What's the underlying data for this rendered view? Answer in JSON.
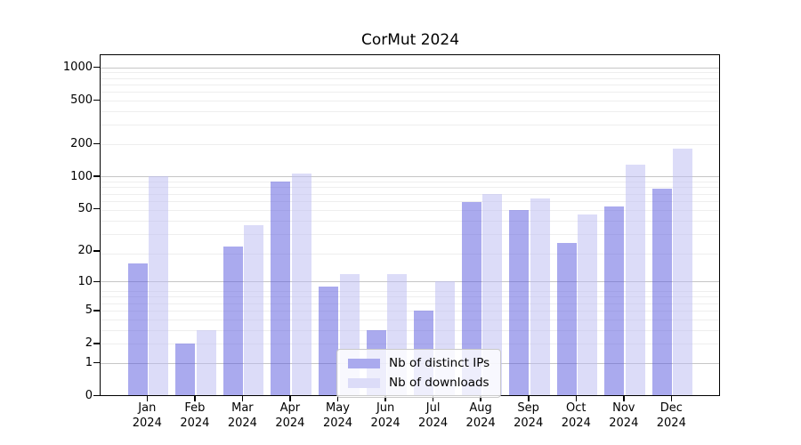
{
  "chart_data": {
    "type": "bar",
    "title": "CorMut 2024",
    "categories": [
      "Jan",
      "Feb",
      "Mar",
      "Apr",
      "May",
      "Jun",
      "Jul",
      "Aug",
      "Sep",
      "Oct",
      "Nov",
      "Dec"
    ],
    "year_label": "2024",
    "series": [
      {
        "name": "Nb of distinct IPs",
        "color": "#aaaaee",
        "values": [
          15,
          2,
          22,
          90,
          9,
          3,
          5,
          58,
          49,
          24,
          52,
          77
        ]
      },
      {
        "name": "Nb of downloads",
        "color": "#dcdcf8",
        "values": [
          100,
          3,
          35,
          105,
          12,
          12,
          10,
          68,
          62,
          44,
          128,
          180
        ]
      }
    ],
    "y_ticks": [
      0,
      1,
      2,
      5,
      10,
      20,
      50,
      100,
      200,
      500,
      1000
    ],
    "yscale": "log(value+1)",
    "ylim": [
      0,
      1300
    ],
    "grid": true,
    "legend_position": "lower center"
  }
}
